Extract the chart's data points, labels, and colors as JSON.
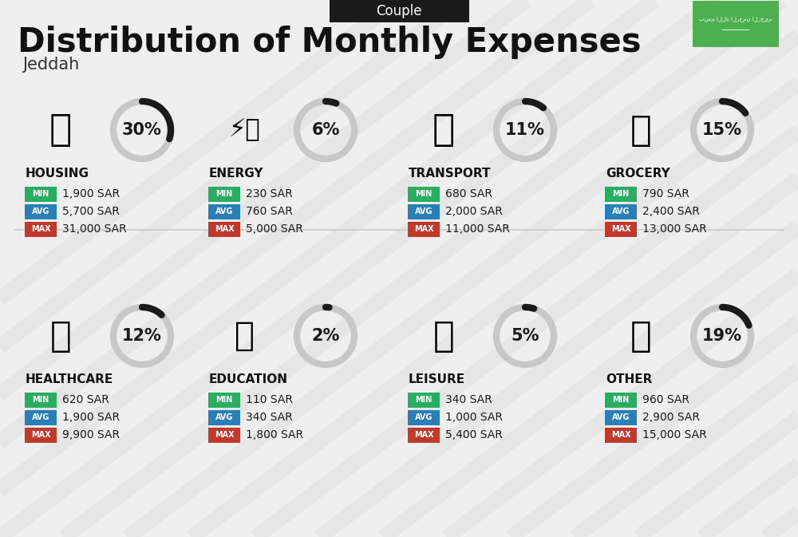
{
  "title": "Distribution of Monthly Expenses",
  "subtitle": "Jeddah",
  "tag": "Couple",
  "bg_color": "#efefef",
  "stripe_color": "#e0e0e0",
  "categories": [
    {
      "name": "HOUSING",
      "percent": 30,
      "min": "1,900 SAR",
      "avg": "5,700 SAR",
      "max": "31,000 SAR",
      "row": 0,
      "col": 0
    },
    {
      "name": "ENERGY",
      "percent": 6,
      "min": "230 SAR",
      "avg": "760 SAR",
      "max": "5,000 SAR",
      "row": 0,
      "col": 1
    },
    {
      "name": "TRANSPORT",
      "percent": 11,
      "min": "680 SAR",
      "avg": "2,000 SAR",
      "max": "11,000 SAR",
      "row": 0,
      "col": 2
    },
    {
      "name": "GROCERY",
      "percent": 15,
      "min": "790 SAR",
      "avg": "2,400 SAR",
      "max": "13,000 SAR",
      "row": 0,
      "col": 3
    },
    {
      "name": "HEALTHCARE",
      "percent": 12,
      "min": "620 SAR",
      "avg": "1,900 SAR",
      "max": "9,900 SAR",
      "row": 1,
      "col": 0
    },
    {
      "name": "EDUCATION",
      "percent": 2,
      "min": "110 SAR",
      "avg": "340 SAR",
      "max": "1,800 SAR",
      "row": 1,
      "col": 1
    },
    {
      "name": "LEISURE",
      "percent": 5,
      "min": "340 SAR",
      "avg": "1,000 SAR",
      "max": "5,400 SAR",
      "row": 1,
      "col": 2
    },
    {
      "name": "OTHER",
      "percent": 19,
      "min": "960 SAR",
      "avg": "2,900 SAR",
      "max": "15,000 SAR",
      "row": 1,
      "col": 3
    }
  ],
  "color_min": "#27ae60",
  "color_avg": "#2980b9",
  "color_max": "#c0392b",
  "color_tag_bg": "#1a1a1a",
  "color_tag_text": "#ffffff",
  "color_title": "#111111",
  "color_subtitle": "#333333",
  "color_category": "#111111",
  "color_ring_filled": "#1a1a1a",
  "color_ring_empty": "#c8c8c8",
  "flag_color": "#4caf50",
  "divider_color": "#cccccc",
  "title_fontsize": 30,
  "subtitle_fontsize": 15,
  "tag_fontsize": 12,
  "cat_fontsize": 11,
  "pct_fontsize": 15,
  "val_fontsize": 10,
  "badge_fontsize": 7
}
